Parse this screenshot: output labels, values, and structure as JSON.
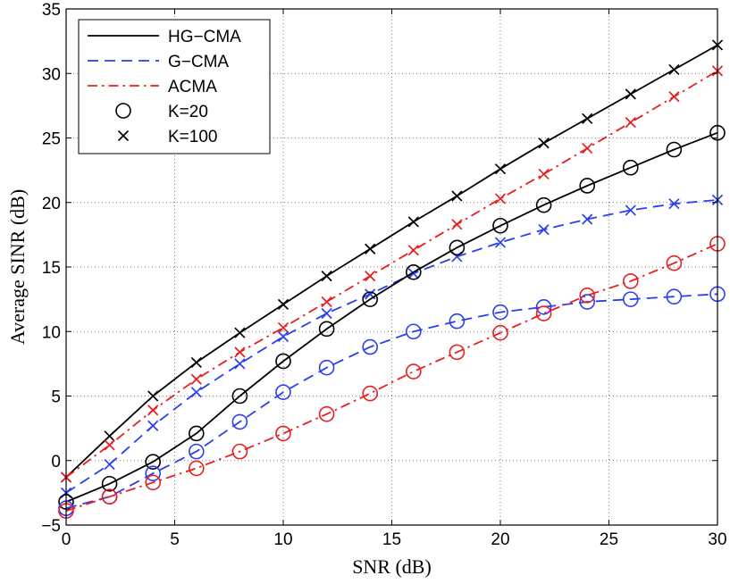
{
  "chart_data": {
    "type": "line",
    "title": "",
    "xlabel": "SNR (dB)",
    "ylabel": "Average SINR (dB)",
    "xlim": [
      0,
      30
    ],
    "ylim": [
      -5,
      35
    ],
    "xticks": [
      0,
      5,
      10,
      15,
      20,
      25,
      30
    ],
    "yticks": [
      -5,
      0,
      5,
      10,
      15,
      20,
      25,
      30,
      35
    ],
    "grid": true,
    "legend_position": "top-left",
    "legend": [
      {
        "label": "HG−CMA",
        "kind": "line",
        "color": "#000000",
        "dash": "solid"
      },
      {
        "label": "G−CMA",
        "kind": "line",
        "color": "#2a3ff0",
        "dash": "dashed"
      },
      {
        "label": "ACMA",
        "kind": "line",
        "color": "#e81e1e",
        "dash": "dashdot"
      },
      {
        "label": "K=20",
        "kind": "marker",
        "marker": "circle",
        "color": "#000000"
      },
      {
        "label": "K=100",
        "kind": "marker",
        "marker": "x",
        "color": "#000000"
      }
    ],
    "x": [
      0,
      2,
      4,
      6,
      8,
      10,
      12,
      14,
      16,
      18,
      20,
      22,
      24,
      26,
      28,
      30
    ],
    "series": [
      {
        "name": "HG-CMA K=100",
        "method": "HG−CMA",
        "K": 100,
        "color": "#000000",
        "dash": "solid",
        "marker": "x",
        "values": [
          -1.3,
          1.9,
          5.0,
          7.6,
          9.9,
          12.1,
          14.3,
          16.4,
          18.5,
          20.5,
          22.6,
          24.6,
          26.5,
          28.4,
          30.3,
          32.2
        ]
      },
      {
        "name": "ACMA K=100",
        "method": "ACMA",
        "K": 100,
        "color": "#e81e1e",
        "dash": "dashdot",
        "marker": "x",
        "values": [
          -1.3,
          1.2,
          3.9,
          6.3,
          8.4,
          10.3,
          12.3,
          14.3,
          16.3,
          18.3,
          20.3,
          22.2,
          24.2,
          26.2,
          28.2,
          30.2
        ]
      },
      {
        "name": "G-CMA K=100",
        "method": "G−CMA",
        "K": 100,
        "color": "#2a3ff0",
        "dash": "dashed",
        "marker": "x",
        "values": [
          -2.5,
          -0.3,
          2.7,
          5.3,
          7.5,
          9.6,
          11.4,
          12.9,
          14.5,
          15.8,
          16.9,
          17.9,
          18.7,
          19.4,
          19.9,
          20.2
        ]
      },
      {
        "name": "HG-CMA K=20",
        "method": "HG−CMA",
        "K": 20,
        "color": "#000000",
        "dash": "solid",
        "marker": "circle",
        "values": [
          -3.2,
          -1.8,
          -0.1,
          2.1,
          5.0,
          7.7,
          10.2,
          12.5,
          14.6,
          16.5,
          18.2,
          19.8,
          21.3,
          22.7,
          24.1,
          25.4
        ]
      },
      {
        "name": "G-CMA K=20",
        "method": "G−CMA",
        "K": 20,
        "color": "#2a3ff0",
        "dash": "dashed",
        "marker": "circle",
        "values": [
          -3.7,
          -2.8,
          -1.0,
          0.7,
          3.0,
          5.3,
          7.2,
          8.8,
          10.0,
          10.8,
          11.5,
          11.9,
          12.3,
          12.5,
          12.7,
          12.9
        ]
      },
      {
        "name": "ACMA K=20",
        "method": "ACMA",
        "K": 20,
        "color": "#e81e1e",
        "dash": "dashdot",
        "marker": "circle",
        "values": [
          -3.9,
          -2.8,
          -1.7,
          -0.6,
          0.7,
          2.1,
          3.6,
          5.2,
          6.9,
          8.4,
          9.9,
          11.4,
          12.8,
          13.9,
          15.3,
          16.8
        ]
      }
    ]
  }
}
